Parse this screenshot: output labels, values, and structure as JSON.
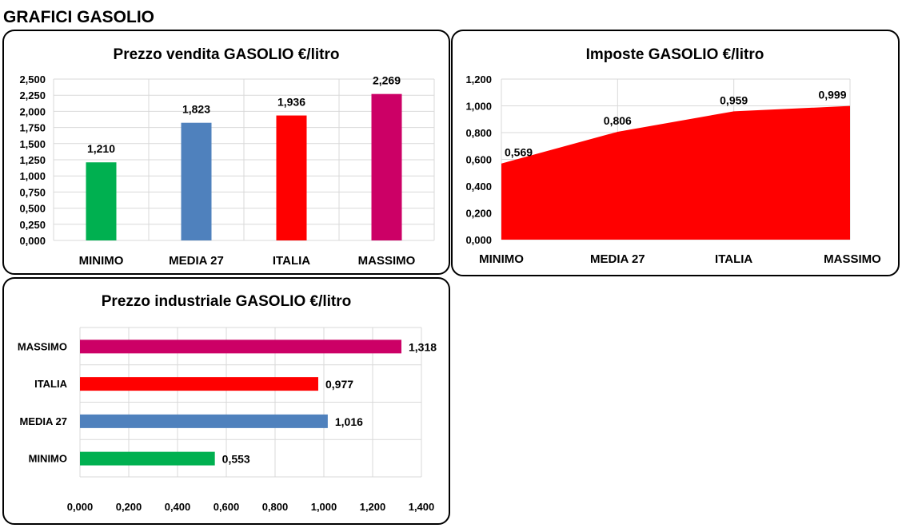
{
  "page_title": "GRAFICI GASOLIO",
  "colors": {
    "title": "#10107a",
    "minimo": "#00b050",
    "media27": "#4f81bd",
    "italia": "#ff0000",
    "massimo": "#cc0066",
    "area": "#ff0000",
    "grid": "#d9d9d9"
  },
  "chart_data": [
    {
      "type": "bar",
      "title": "Prezzo vendita GASOLIO €/litro",
      "categories": [
        "MINIMO",
        "MEDIA 27",
        "ITALIA",
        "MASSIMO"
      ],
      "values": [
        1.21,
        1.823,
        1.936,
        2.269
      ],
      "value_labels": [
        "1,210",
        "1,823",
        "1,936",
        "2,269"
      ],
      "ylim": [
        0,
        2.5
      ],
      "yticks": [
        "0,000",
        "0,250",
        "0,500",
        "0,750",
        "1,000",
        "1,250",
        "1,500",
        "1,750",
        "2,000",
        "2,250",
        "2,500"
      ],
      "grid": true,
      "xlabel": "",
      "ylabel": ""
    },
    {
      "type": "area",
      "title": "Imposte GASOLIO €/litro",
      "categories": [
        "MINIMO",
        "MEDIA 27",
        "ITALIA",
        "MASSIMO"
      ],
      "values": [
        0.569,
        0.806,
        0.959,
        0.999
      ],
      "value_labels": [
        "0,569",
        "0,806",
        "0,959",
        "0,999"
      ],
      "ylim": [
        0,
        1.2
      ],
      "yticks": [
        "0,000",
        "0,200",
        "0,400",
        "0,600",
        "0,800",
        "1,000",
        "1,200"
      ],
      "grid": true,
      "xlabel": "",
      "ylabel": ""
    },
    {
      "type": "bar",
      "orientation": "horizontal",
      "title": "Prezzo industriale GASOLIO €/litro",
      "categories": [
        "MINIMO",
        "MEDIA 27",
        "ITALIA",
        "MASSIMO"
      ],
      "values": [
        0.553,
        1.016,
        0.977,
        1.318
      ],
      "value_labels": [
        "0,553",
        "1,016",
        "0,977",
        "1,318"
      ],
      "xlim": [
        0,
        1.4
      ],
      "xticks": [
        "0,000",
        "0,200",
        "0,400",
        "0,600",
        "0,800",
        "1,000",
        "1,200",
        "1,400"
      ],
      "grid": true,
      "xlabel": "",
      "ylabel": ""
    }
  ]
}
